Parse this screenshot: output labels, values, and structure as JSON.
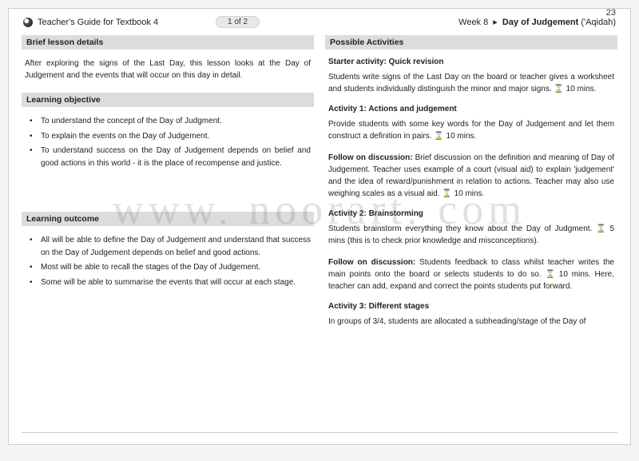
{
  "header": {
    "guide_title": "Teacher's Guide for Textbook 4",
    "page_badge": "1 of 2",
    "week": "Week 8",
    "separator": "▸",
    "topic": "Day of Judgement",
    "topic_sub": "('Aqidah)",
    "page_number": "23"
  },
  "left": {
    "brief_head": "Brief lesson details",
    "brief_body": "After exploring the signs of the Last Day,  this lesson looks at the Day of Judgement and the events that will occur on this day in detail.",
    "objective_head": "Learning objective",
    "objectives": [
      "To understand the concept of the  Day of Judgment.",
      "To explain the events on the Day of Judgement.",
      "To understand success on the Day of Judgement depends on belief and good actions in this world - it is the place of recompense and justice."
    ],
    "outcome_head": "Learning outcome",
    "outcomes": [
      "All will be able to define the Day of Judgement and understand that success on the Day of Judgement depends on belief and good actions.",
      "Most will be able to recall the stages of the Day of Judgement.",
      "Some will be able to summarise the events that will occur at each stage."
    ]
  },
  "right": {
    "activities_head": "Possible Activities",
    "starter_head": "Starter activity: Quick revision",
    "starter_body_a": "Students write signs of the Last Day on the board or teacher gives a worksheet and students individually distinguish the minor and major signs. ",
    "starter_time": " 10 mins.",
    "act1_head": "Activity 1: Actions and judgement",
    "act1_body_a": "Provide students with some key words for the Day of Judgement and let them construct a definition in pairs. ",
    "act1_time": " 10 mins.",
    "follow1_label": "Follow on discussion: ",
    "follow1_body_a": "Brief discussion on the definition and meaning of Day of Judgement. Teacher uses example of a court (visual aid) to explain 'judgement' and the idea of reward/punishment in relation to actions. Teacher may also use weighing scales as a visual aid. ",
    "follow1_time": " 10 mins.",
    "act2_head": "Activity 2: Brainstorming",
    "act2_body_a": "Students brainstorm everything they know about the Day of Judgment. ",
    "act2_time": " 5 mins (this is to check prior knowledge and misconceptions).",
    "follow2_label": "Follow on discussion: ",
    "follow2_body_a": "Students feedback to class whilst teacher writes the main points onto the board or selects students to do so. ",
    "follow2_time": " 10 mins. Here, teacher can add, expand and correct the points students put forward.",
    "act3_head": "Activity 3: Different stages",
    "act3_body": "In groups of 3/4, students are allocated a subheading/stage of the Day of"
  },
  "watermark": "www. noorart. com",
  "icons": {
    "hourglass": "⌛"
  },
  "colors": {
    "section_bg": "#dcdcdc",
    "text": "#222222",
    "page_bg": "#ffffff",
    "border": "#cccccc"
  }
}
